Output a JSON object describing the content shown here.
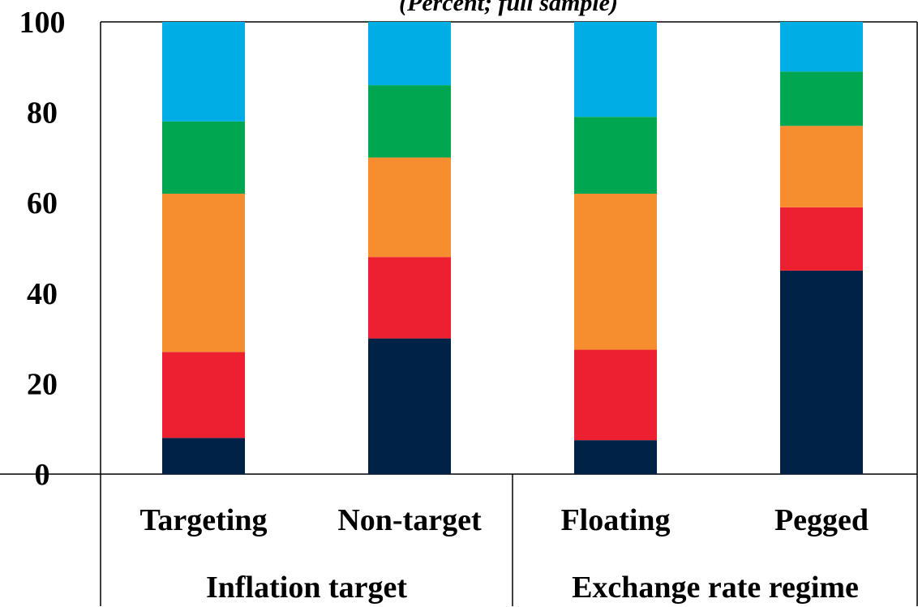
{
  "chart_data": {
    "type": "bar",
    "stacked": true,
    "subtitle": "(Percent; full sample)",
    "ylim": [
      0,
      100
    ],
    "yticks": [
      0,
      20,
      40,
      60,
      80,
      100
    ],
    "grid": false,
    "categories": [
      "Targeting",
      "Non-target",
      "Floating",
      "Pegged"
    ],
    "groups": [
      {
        "label": "Inflation target",
        "categories": [
          "Targeting",
          "Non-target"
        ]
      },
      {
        "label": "Exchange rate regime",
        "categories": [
          "Floating",
          "Pegged"
        ]
      }
    ],
    "series": [
      {
        "color": "#002247",
        "values": [
          8,
          30,
          7.5,
          45
        ]
      },
      {
        "color": "#ec2030",
        "values": [
          19,
          18,
          20,
          14
        ]
      },
      {
        "color": "#f68d2e",
        "values": [
          35,
          22,
          34.5,
          18
        ]
      },
      {
        "color": "#00a650",
        "values": [
          16,
          16,
          17,
          12
        ]
      },
      {
        "color": "#00aee5",
        "values": [
          22,
          14,
          21,
          11
        ]
      }
    ]
  }
}
